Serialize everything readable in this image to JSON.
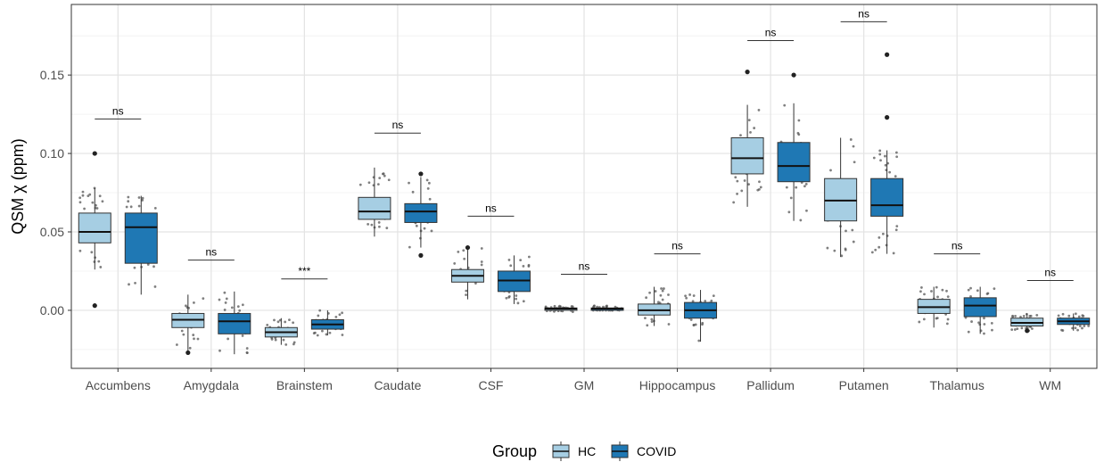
{
  "chart_data": {
    "type": "boxplot",
    "ylabel": "QSM χ (ppm)",
    "ylim": [
      -0.037,
      0.195
    ],
    "yticks": [
      0.0,
      0.05,
      0.1,
      0.15
    ],
    "ytick_labels": [
      "0.00",
      "0.05",
      "0.10",
      "0.15"
    ],
    "grid": true,
    "legend": {
      "title": "Group",
      "position": "bottom",
      "entries": [
        {
          "name": "HC",
          "color": "#a6cee3"
        },
        {
          "name": "COVID",
          "color": "#1f78b4"
        }
      ]
    },
    "categories": [
      "Accumbens",
      "Amygdala",
      "Brainstem",
      "Caudate",
      "CSF",
      "GM",
      "Hippocampus",
      "Pallidum",
      "Putamen",
      "Thalamus",
      "WM"
    ],
    "series": [
      {
        "name": "HC",
        "color": "#a6cee3",
        "boxes": [
          {
            "q1": 0.043,
            "median": 0.05,
            "q3": 0.062,
            "whisker_low": 0.026,
            "whisker_high": 0.078,
            "outliers": [
              0.1,
              0.003
            ]
          },
          {
            "q1": -0.011,
            "median": -0.006,
            "q3": -0.002,
            "whisker_low": -0.026,
            "whisker_high": 0.01,
            "outliers": [
              -0.027
            ]
          },
          {
            "q1": -0.017,
            "median": -0.014,
            "q3": -0.011,
            "whisker_low": -0.022,
            "whisker_high": -0.005,
            "outliers": []
          },
          {
            "q1": 0.058,
            "median": 0.063,
            "q3": 0.072,
            "whisker_low": 0.047,
            "whisker_high": 0.091,
            "outliers": []
          },
          {
            "q1": 0.018,
            "median": 0.022,
            "q3": 0.026,
            "whisker_low": 0.007,
            "whisker_high": 0.04,
            "outliers": [
              0.04
            ]
          },
          {
            "q1": 0.0,
            "median": 0.001,
            "q3": 0.0015,
            "whisker_low": -0.001,
            "whisker_high": 0.003,
            "outliers": []
          },
          {
            "q1": -0.003,
            "median": 0.0,
            "q3": 0.004,
            "whisker_low": -0.01,
            "whisker_high": 0.015,
            "outliers": []
          },
          {
            "q1": 0.087,
            "median": 0.097,
            "q3": 0.11,
            "whisker_low": 0.066,
            "whisker_high": 0.131,
            "outliers": [
              0.152
            ]
          },
          {
            "q1": 0.057,
            "median": 0.07,
            "q3": 0.084,
            "whisker_low": 0.034,
            "whisker_high": 0.11,
            "outliers": []
          },
          {
            "q1": -0.002,
            "median": 0.002,
            "q3": 0.007,
            "whisker_low": -0.011,
            "whisker_high": 0.015,
            "outliers": []
          },
          {
            "q1": -0.01,
            "median": -0.008,
            "q3": -0.005,
            "whisker_low": -0.013,
            "whisker_high": -0.002,
            "outliers": [
              -0.013
            ]
          }
        ]
      },
      {
        "name": "COVID",
        "color": "#1f78b4",
        "boxes": [
          {
            "q1": 0.03,
            "median": 0.053,
            "q3": 0.062,
            "whisker_low": 0.01,
            "whisker_high": 0.073,
            "outliers": []
          },
          {
            "q1": -0.015,
            "median": -0.007,
            "q3": -0.002,
            "whisker_low": -0.028,
            "whisker_high": 0.012,
            "outliers": []
          },
          {
            "q1": -0.012,
            "median": -0.009,
            "q3": -0.006,
            "whisker_low": -0.016,
            "whisker_high": 0.0,
            "outliers": []
          },
          {
            "q1": 0.056,
            "median": 0.063,
            "q3": 0.068,
            "whisker_low": 0.04,
            "whisker_high": 0.085,
            "outliers": [
              0.087,
              0.035
            ]
          },
          {
            "q1": 0.012,
            "median": 0.019,
            "q3": 0.025,
            "whisker_low": 0.004,
            "whisker_high": 0.035,
            "outliers": []
          },
          {
            "q1": 0.0,
            "median": 0.001,
            "q3": 0.0015,
            "whisker_low": 0.0,
            "whisker_high": 0.003,
            "outliers": []
          },
          {
            "q1": -0.005,
            "median": 0.0,
            "q3": 0.005,
            "whisker_low": -0.02,
            "whisker_high": 0.013,
            "outliers": []
          },
          {
            "q1": 0.082,
            "median": 0.092,
            "q3": 0.107,
            "whisker_low": 0.057,
            "whisker_high": 0.132,
            "outliers": [
              0.15
            ]
          },
          {
            "q1": 0.06,
            "median": 0.067,
            "q3": 0.084,
            "whisker_low": 0.036,
            "whisker_high": 0.102,
            "outliers": [
              0.163,
              0.123
            ]
          },
          {
            "q1": -0.004,
            "median": 0.003,
            "q3": 0.008,
            "whisker_low": -0.015,
            "whisker_high": 0.015,
            "outliers": []
          },
          {
            "q1": -0.009,
            "median": -0.007,
            "q3": -0.005,
            "whisker_low": -0.013,
            "whisker_high": -0.002,
            "outliers": []
          }
        ]
      }
    ],
    "significance": [
      {
        "category": "Accumbens",
        "label": "ns",
        "y": 0.122
      },
      {
        "category": "Amygdala",
        "label": "ns",
        "y": 0.032
      },
      {
        "category": "Brainstem",
        "label": "***",
        "y": 0.02
      },
      {
        "category": "Caudate",
        "label": "ns",
        "y": 0.113
      },
      {
        "category": "CSF",
        "label": "ns",
        "y": 0.06
      },
      {
        "category": "GM",
        "label": "ns",
        "y": 0.023
      },
      {
        "category": "Hippocampus",
        "label": "ns",
        "y": 0.036
      },
      {
        "category": "Pallidum",
        "label": "ns",
        "y": 0.172
      },
      {
        "category": "Putamen",
        "label": "ns",
        "y": 0.184
      },
      {
        "category": "Thalamus",
        "label": "ns",
        "y": 0.036
      },
      {
        "category": "WM",
        "label": "ns",
        "y": 0.019
      }
    ]
  }
}
